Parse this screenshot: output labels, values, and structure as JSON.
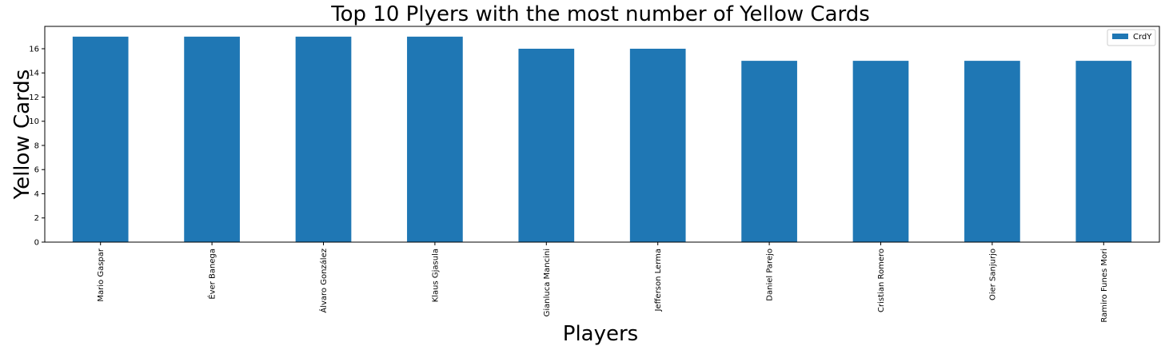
{
  "chart_data": {
    "type": "bar",
    "title": "Top 10 Plyers with the most number of Yellow Cards",
    "xlabel": "Players",
    "ylabel": "Yellow Cards",
    "categories": [
      "Mario Gaspar",
      "Éver Banega",
      "Álvaro González",
      "Klaus Gjasula",
      "Gianluca Mancini",
      "Jefferson Lerma",
      "Daniel Parejo",
      "Cristian Romero",
      "Oier Sanjurjo",
      "Ramiro Funes Mori"
    ],
    "series": [
      {
        "name": "CrdY",
        "values": [
          17,
          17,
          17,
          17,
          16,
          16,
          15,
          15,
          15,
          15
        ],
        "color": "#1f77b4"
      }
    ],
    "ylim": [
      0,
      17.85
    ],
    "yticks": [
      "0",
      "2",
      "4",
      "6",
      "8",
      "10",
      "12",
      "14",
      "16"
    ],
    "grid": false,
    "legend_position": "top-right"
  }
}
